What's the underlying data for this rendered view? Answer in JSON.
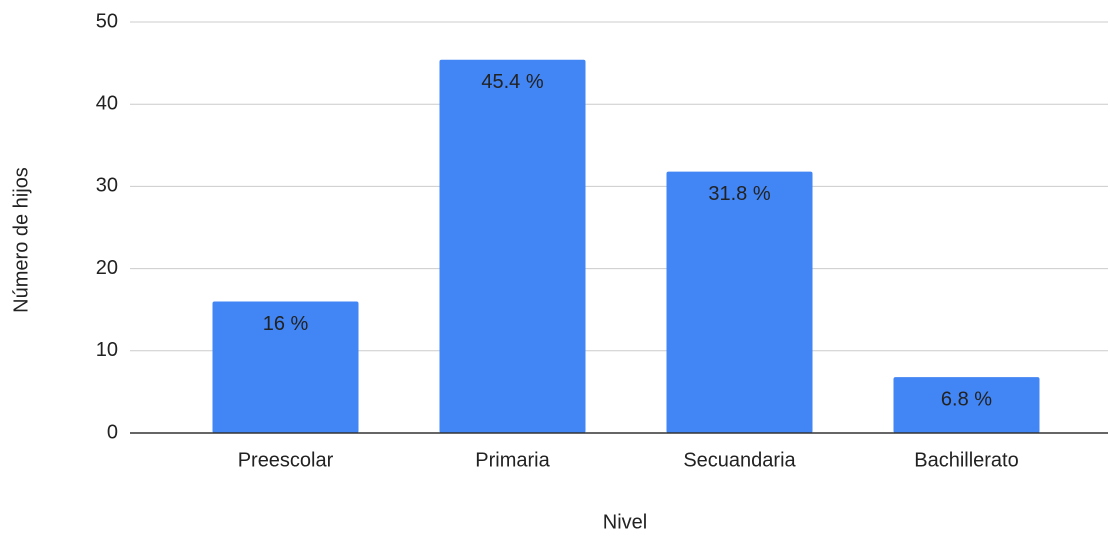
{
  "chart_data": {
    "type": "bar",
    "x_label": "Nivel",
    "y_label": "Número de hijos",
    "categories": [
      "Preescolar",
      "Primaria",
      "Secuandaria",
      "Bachillerato"
    ],
    "values": [
      16,
      45.4,
      31.8,
      6.8
    ],
    "value_labels": [
      "16 %",
      "45.4 %",
      "31.8 %",
      "6.8 %"
    ],
    "color": "#4285f4",
    "ylim": [
      0,
      50
    ],
    "yticks": [
      0,
      10,
      20,
      30,
      40,
      50
    ],
    "grid": true
  }
}
